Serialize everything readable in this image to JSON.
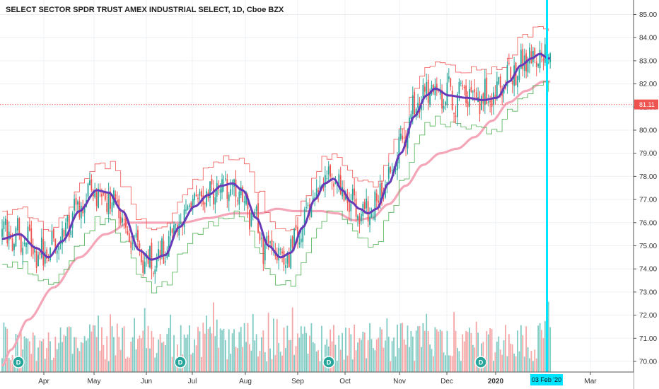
{
  "chart_data": {
    "type": "candlestick",
    "title": "SELECT SECTOR SPDR TRUST AMEX INDUSTRIAL SELECT, 1D, Cboe BZX",
    "y_ticks": [
      "85.00",
      "84.00",
      "83.00",
      "82.00",
      "81.00",
      "80.00",
      "79.00",
      "78.00",
      "77.00",
      "76.00",
      "75.00",
      "74.00",
      "73.00",
      "72.00",
      "71.00",
      "70.00"
    ],
    "ylim": [
      69.4,
      85.4
    ],
    "x_ticks": [
      "Apr",
      "May",
      "Jun",
      "Jul",
      "Aug",
      "Sep",
      "Oct",
      "Nov",
      "Dec",
      "2020",
      "Mar"
    ],
    "last_price": "81.11",
    "cursor_date": "03 Feb '20",
    "dividend_markers": [
      "D",
      "D",
      "D",
      "D"
    ],
    "grid": true,
    "colors": {
      "up": "#26a69a",
      "down": "#ef5350",
      "vol_up": "#80cbc4",
      "vol_down": "#f5a5a5",
      "ma_fast": "#673ab7",
      "ma_slow": "#f4a6b8",
      "trail_up": "#4caf50",
      "trail_down": "#ef5350",
      "cursor": "#00e5ff",
      "price_line": "#ef5350"
    },
    "ma_fast_anchors": [
      [
        0,
        75.3
      ],
      [
        10,
        75.5
      ],
      [
        20,
        74.9
      ],
      [
        27,
        74.5
      ],
      [
        35,
        75.2
      ],
      [
        45,
        76.5
      ],
      [
        55,
        77.4
      ],
      [
        62,
        77.3
      ],
      [
        70,
        76.5
      ],
      [
        80,
        74.8
      ],
      [
        87,
        74.4
      ],
      [
        95,
        74.6
      ],
      [
        103,
        75.8
      ],
      [
        112,
        76.7
      ],
      [
        120,
        77.2
      ],
      [
        128,
        77.6
      ],
      [
        134,
        77.7
      ],
      [
        140,
        77.4
      ],
      [
        148,
        76.2
      ],
      [
        155,
        75.0
      ],
      [
        162,
        74.5
      ],
      [
        168,
        74.7
      ],
      [
        175,
        75.8
      ],
      [
        182,
        77.0
      ],
      [
        188,
        77.7
      ],
      [
        193,
        77.9
      ],
      [
        198,
        77.4
      ],
      [
        203,
        76.9
      ],
      [
        208,
        76.6
      ],
      [
        213,
        76.4
      ],
      [
        218,
        76.6
      ],
      [
        225,
        77.7
      ],
      [
        232,
        79.0
      ],
      [
        240,
        80.6
      ],
      [
        247,
        81.5
      ],
      [
        252,
        81.8
      ],
      [
        260,
        81.5
      ],
      [
        270,
        81.4
      ],
      [
        280,
        81.3
      ],
      [
        288,
        81.4
      ],
      [
        295,
        82.1
      ],
      [
        302,
        82.8
      ],
      [
        308,
        83.1
      ],
      [
        313,
        83.3
      ],
      [
        318,
        83.1
      ]
    ],
    "ma_slow_anchors": [
      [
        0,
        69.8
      ],
      [
        5,
        70.5
      ],
      [
        15,
        71.8
      ],
      [
        30,
        73.2
      ],
      [
        45,
        74.5
      ],
      [
        60,
        75.5
      ],
      [
        75,
        76.0
      ],
      [
        90,
        76.0
      ],
      [
        105,
        76.0
      ],
      [
        120,
        76.2
      ],
      [
        135,
        76.4
      ],
      [
        150,
        76.4
      ],
      [
        160,
        76.6
      ],
      [
        170,
        76.5
      ],
      [
        185,
        76.5
      ],
      [
        195,
        76.4
      ],
      [
        205,
        76.1
      ],
      [
        215,
        76.2
      ],
      [
        225,
        76.8
      ],
      [
        235,
        77.6
      ],
      [
        245,
        78.5
      ],
      [
        255,
        79.0
      ],
      [
        265,
        79.2
      ],
      [
        275,
        79.7
      ],
      [
        285,
        80.4
      ],
      [
        295,
        81.2
      ],
      [
        305,
        81.7
      ],
      [
        315,
        82.1
      ],
      [
        318,
        82.1
      ]
    ]
  }
}
